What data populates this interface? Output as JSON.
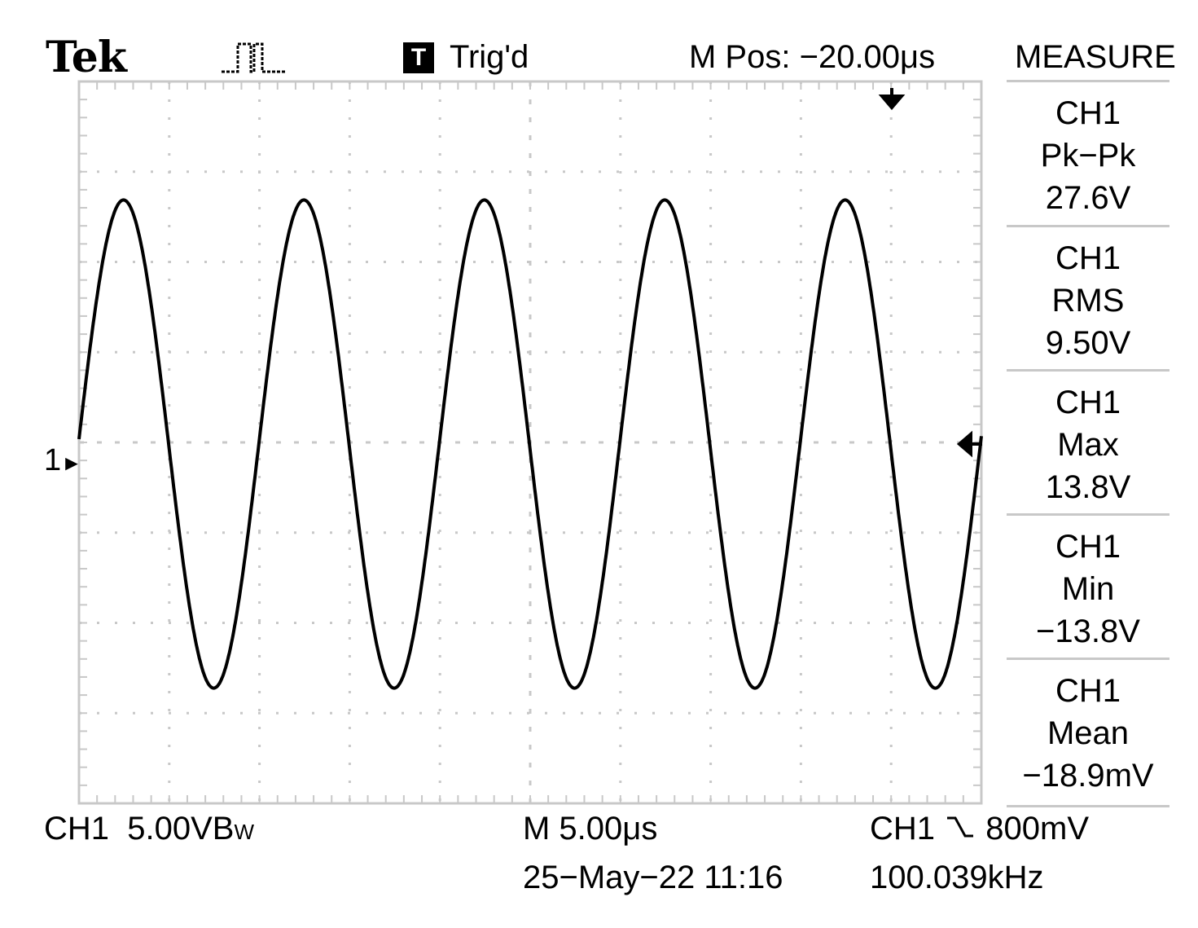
{
  "header": {
    "brand": "Tek",
    "acquire_icon": "pulse-waveform-icon",
    "trigger_badge": "T",
    "trigger_status": "Trig'd",
    "horizontal_position": "M Pos: −20.00μs"
  },
  "measure": {
    "title": "MEASURE",
    "items": [
      {
        "source": "CH1",
        "type": "Pk−Pk",
        "value": "27.6V"
      },
      {
        "source": "CH1",
        "type": "RMS",
        "value": "9.50V"
      },
      {
        "source": "CH1",
        "type": "Max",
        "value": "13.8V"
      },
      {
        "source": "CH1",
        "type": "Min",
        "value": "−13.8V"
      },
      {
        "source": "CH1",
        "type": "Mean",
        "value": "−18.9mV"
      }
    ]
  },
  "footer": {
    "channel": "CH1",
    "volts_per_div": "5.00V",
    "bw_limit": "B",
    "bw_limit_sub": "W",
    "timebase": "M 5.00μs",
    "datetime": "25−May−22 11:16",
    "trigger_source": "CH1",
    "trigger_slope_icon": "falling-edge-icon",
    "trigger_level": "800mV",
    "frequency": "100.039kHz"
  },
  "ground_marker": "1",
  "chart_data": {
    "type": "line",
    "series": [
      {
        "name": "CH1",
        "waveform": "sine",
        "amplitude_v": 13.8,
        "frequency_khz": 100.039,
        "offset_v": 0
      }
    ],
    "x_range_us": [
      -25,
      25
    ],
    "y_range_v": [
      -20,
      20
    ],
    "grid": true,
    "divisions": {
      "x": 10,
      "y": 8
    }
  },
  "colors": {
    "trace": "#000000",
    "grid": "#c8c8c8",
    "background": "#ffffff"
  }
}
